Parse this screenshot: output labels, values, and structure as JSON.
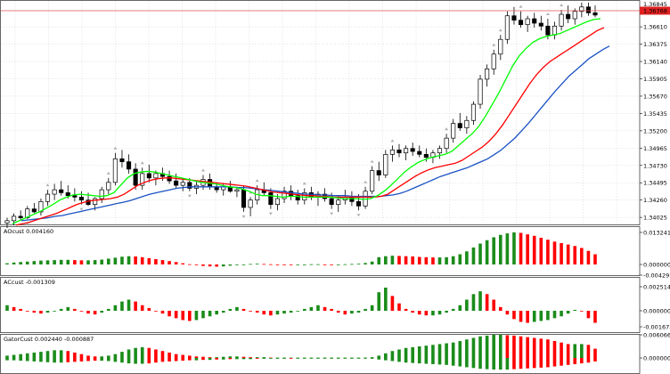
{
  "colors": {
    "background": "#ffffff",
    "grid": "#c8c8c8",
    "candle": "#000000",
    "alligator_fast": "#00ff00",
    "alligator_mid": "#ff0000",
    "alligator_slow": "#1a52c4",
    "histogram_up": "#1a8c1a",
    "histogram_down": "#ff0000",
    "price_line": "#e05050",
    "current_price_badge": "#e02020"
  },
  "main_panel": {
    "current_price": "1.36768",
    "top_price": "1.36845",
    "price_ticks": [
      "1.36610",
      "1.36375",
      "1.36140",
      "1.35905",
      "1.35670",
      "1.35435",
      "1.35200",
      "1.34965",
      "1.34730",
      "1.34495",
      "1.34260",
      "1.34025"
    ]
  },
  "panels": [
    {
      "title": "AOcust 0.004160",
      "ticks": [
        "0.013241",
        "0.000000",
        "-0.004297"
      ]
    },
    {
      "title": "ACcust -0.001309",
      "ticks": [
        "0.0025149",
        "0.000000",
        "-0.0016730"
      ]
    },
    {
      "title": "GatorCust 0.002440 -0.000887",
      "ticks": [
        "0.006066",
        "0.000000"
      ]
    }
  ],
  "chart_data": {
    "type": "candlestick",
    "ylim": [
      1.3393,
      1.3695
    ],
    "candles": [
      [
        1.3395,
        1.3402,
        1.3388,
        1.3398
      ],
      [
        1.3398,
        1.3408,
        1.3392,
        1.3404
      ],
      [
        1.3404,
        1.3412,
        1.3398,
        1.3402
      ],
      [
        1.3402,
        1.3418,
        1.34,
        1.3414
      ],
      [
        1.3414,
        1.3422,
        1.3408,
        1.341
      ],
      [
        1.341,
        1.3428,
        1.3405,
        1.3424
      ],
      [
        1.3424,
        1.344,
        1.3418,
        1.3434
      ],
      [
        1.3434,
        1.3448,
        1.3426,
        1.344
      ],
      [
        1.344,
        1.3452,
        1.3432,
        1.3436
      ],
      [
        1.3436,
        1.3446,
        1.3428,
        1.3432
      ],
      [
        1.3432,
        1.3442,
        1.3424,
        1.343
      ],
      [
        1.343,
        1.3438,
        1.342,
        1.3426
      ],
      [
        1.3426,
        1.3436,
        1.3418,
        1.342
      ],
      [
        1.342,
        1.343,
        1.3412,
        1.3428
      ],
      [
        1.3428,
        1.3444,
        1.3422,
        1.344
      ],
      [
        1.344,
        1.3456,
        1.3434,
        1.345
      ],
      [
        1.345,
        1.349,
        1.3446,
        1.3482
      ],
      [
        1.3482,
        1.3494,
        1.347,
        1.3478
      ],
      [
        1.3478,
        1.3488,
        1.3462,
        1.3468
      ],
      [
        1.3468,
        1.3476,
        1.344,
        1.3446
      ],
      [
        1.3446,
        1.347,
        1.344,
        1.3462
      ],
      [
        1.3462,
        1.3474,
        1.345,
        1.3456
      ],
      [
        1.3456,
        1.3466,
        1.3446,
        1.3462
      ],
      [
        1.3462,
        1.347,
        1.3452,
        1.3458
      ],
      [
        1.3458,
        1.3466,
        1.3448,
        1.3452
      ],
      [
        1.3452,
        1.3462,
        1.3442,
        1.3446
      ],
      [
        1.3446,
        1.3456,
        1.3438,
        1.345
      ],
      [
        1.345,
        1.3456,
        1.3438,
        1.3442
      ],
      [
        1.3442,
        1.3452,
        1.3434,
        1.3446
      ],
      [
        1.3446,
        1.346,
        1.344,
        1.3454
      ],
      [
        1.3454,
        1.3462,
        1.344,
        1.3444
      ],
      [
        1.3444,
        1.345,
        1.3436,
        1.344
      ],
      [
        1.344,
        1.3448,
        1.3432,
        1.3444
      ],
      [
        1.3444,
        1.3452,
        1.3436,
        1.3438
      ],
      [
        1.3438,
        1.3444,
        1.343,
        1.344
      ],
      [
        1.344,
        1.3446,
        1.341,
        1.3416
      ],
      [
        1.3416,
        1.343,
        1.3404,
        1.3426
      ],
      [
        1.3426,
        1.3446,
        1.342,
        1.344
      ],
      [
        1.344,
        1.345,
        1.3432,
        1.3436
      ],
      [
        1.3436,
        1.3442,
        1.3414,
        1.342
      ],
      [
        1.342,
        1.3434,
        1.3412,
        1.3428
      ],
      [
        1.3428,
        1.3444,
        1.3422,
        1.3438
      ],
      [
        1.3438,
        1.3446,
        1.3426,
        1.3432
      ],
      [
        1.3432,
        1.344,
        1.342,
        1.3426
      ],
      [
        1.3426,
        1.3442,
        1.342,
        1.3436
      ],
      [
        1.3436,
        1.3444,
        1.3426,
        1.343
      ],
      [
        1.343,
        1.3438,
        1.3418,
        1.3434
      ],
      [
        1.3434,
        1.3442,
        1.3424,
        1.3428
      ],
      [
        1.3428,
        1.3436,
        1.3414,
        1.342
      ],
      [
        1.342,
        1.3432,
        1.341,
        1.3426
      ],
      [
        1.3426,
        1.344,
        1.342,
        1.343
      ],
      [
        1.343,
        1.3438,
        1.3418,
        1.3424
      ],
      [
        1.3424,
        1.3434,
        1.3412,
        1.3418
      ],
      [
        1.3418,
        1.3444,
        1.3414,
        1.3438
      ],
      [
        1.3438,
        1.3472,
        1.3434,
        1.3466
      ],
      [
        1.3466,
        1.3478,
        1.3452,
        1.346
      ],
      [
        1.346,
        1.3494,
        1.3456,
        1.3488
      ],
      [
        1.3488,
        1.35,
        1.3478,
        1.3494
      ],
      [
        1.3494,
        1.3502,
        1.3484,
        1.349
      ],
      [
        1.349,
        1.35,
        1.348,
        1.3496
      ],
      [
        1.3496,
        1.3504,
        1.3486,
        1.3492
      ],
      [
        1.3492,
        1.35,
        1.3484,
        1.3488
      ],
      [
        1.3488,
        1.3496,
        1.3478,
        1.3484
      ],
      [
        1.3484,
        1.3494,
        1.3476,
        1.349
      ],
      [
        1.349,
        1.35,
        1.3482,
        1.3496
      ],
      [
        1.3496,
        1.3516,
        1.349,
        1.351
      ],
      [
        1.351,
        1.3536,
        1.3504,
        1.353
      ],
      [
        1.353,
        1.3544,
        1.352,
        1.3524
      ],
      [
        1.3524,
        1.354,
        1.3516,
        1.3534
      ],
      [
        1.3534,
        1.356,
        1.3528,
        1.3556
      ],
      [
        1.3556,
        1.3596,
        1.355,
        1.359
      ],
      [
        1.359,
        1.361,
        1.358,
        1.3604
      ],
      [
        1.3604,
        1.363,
        1.3596,
        1.3624
      ],
      [
        1.3624,
        1.365,
        1.3616,
        1.3644
      ],
      [
        1.3644,
        1.3682,
        1.3638,
        1.3676
      ],
      [
        1.3676,
        1.3688,
        1.3664,
        1.367
      ],
      [
        1.367,
        1.3682,
        1.366,
        1.3664
      ],
      [
        1.3664,
        1.3676,
        1.3654,
        1.3672
      ],
      [
        1.3672,
        1.368,
        1.366,
        1.3666
      ],
      [
        1.3666,
        1.3676,
        1.3656,
        1.3662
      ],
      [
        1.3662,
        1.3672,
        1.3644,
        1.365
      ],
      [
        1.365,
        1.3668,
        1.3644,
        1.3662
      ],
      [
        1.3662,
        1.3684,
        1.3656,
        1.3678
      ],
      [
        1.3678,
        1.369,
        1.3666,
        1.3672
      ],
      [
        1.3672,
        1.3686,
        1.3664,
        1.3682
      ],
      [
        1.3682,
        1.3694,
        1.3674,
        1.3688
      ],
      [
        1.3688,
        1.3694,
        1.3676,
        1.368
      ],
      [
        1.368,
        1.369,
        1.3674,
        1.3677
      ]
    ],
    "alligator": {
      "lips": [
        1.3394,
        1.3398,
        1.3402,
        1.3406,
        1.341,
        1.3415,
        1.342,
        1.3426,
        1.343,
        1.3433,
        1.3434,
        1.3433,
        1.3432,
        1.3431,
        1.3432,
        1.3436,
        1.3446,
        1.3456,
        1.3462,
        1.3464,
        1.3465,
        1.3464,
        1.3462,
        1.346,
        1.3458,
        1.3456,
        1.3454,
        1.3452,
        1.345,
        1.3449,
        1.3448,
        1.3446,
        1.3444,
        1.3443,
        1.3441,
        1.3438,
        1.3434,
        1.3432,
        1.3432,
        1.3431,
        1.343,
        1.3431,
        1.3431,
        1.343,
        1.343,
        1.343,
        1.343,
        1.343,
        1.3429,
        1.3428,
        1.3428,
        1.3428,
        1.3427,
        1.3428,
        1.3432,
        1.3438,
        1.3446,
        1.3455,
        1.3464,
        1.3471,
        1.3477,
        1.3481,
        1.3484,
        1.3486,
        1.3488,
        1.3492,
        1.35,
        1.3508,
        1.3516,
        1.3526,
        1.354,
        1.3556,
        1.3572,
        1.359,
        1.3608,
        1.3622,
        1.3632,
        1.364,
        1.3645,
        1.3648,
        1.365,
        1.3652,
        1.3656,
        1.366,
        1.3664,
        1.3668,
        1.3671,
        1.3672
      ],
      "teeth": [
        1.3392,
        1.3394,
        1.3396,
        1.3399,
        1.3402,
        1.3405,
        1.3408,
        1.3412,
        1.3416,
        1.342,
        1.3423,
        1.3425,
        1.3426,
        1.3427,
        1.3428,
        1.343,
        1.3434,
        1.344,
        1.3446,
        1.345,
        1.3453,
        1.3455,
        1.3456,
        1.3456,
        1.3455,
        1.3454,
        1.3453,
        1.3452,
        1.3451,
        1.345,
        1.3449,
        1.3448,
        1.3447,
        1.3446,
        1.3445,
        1.3443,
        1.3441,
        1.3439,
        1.3437,
        1.3436,
        1.3435,
        1.3434,
        1.3433,
        1.3432,
        1.3432,
        1.3431,
        1.3431,
        1.343,
        1.343,
        1.343,
        1.343,
        1.343,
        1.343,
        1.343,
        1.3431,
        1.3434,
        1.344,
        1.3446,
        1.3452,
        1.3458,
        1.3463,
        1.3467,
        1.347,
        1.3472,
        1.3474,
        1.3476,
        1.348,
        1.3486,
        1.3492,
        1.3498,
        1.3506,
        1.3516,
        1.3528,
        1.3542,
        1.3556,
        1.357,
        1.3584,
        1.3596,
        1.3606,
        1.3614,
        1.362,
        1.3626,
        1.3632,
        1.3638,
        1.3644,
        1.365,
        1.3656,
        1.366
      ],
      "jaw": [
        1.3398,
        1.3399,
        1.34,
        1.3401,
        1.3402,
        1.3404,
        1.3405,
        1.3407,
        1.3409,
        1.3411,
        1.3413,
        1.3415,
        1.3417,
        1.3419,
        1.3421,
        1.3423,
        1.3425,
        1.3428,
        1.3431,
        1.3434,
        1.3436,
        1.3438,
        1.344,
        1.3442,
        1.3443,
        1.3444,
        1.3444,
        1.3444,
        1.3444,
        1.3444,
        1.3444,
        1.3444,
        1.3443,
        1.3443,
        1.3442,
        1.3441,
        1.344,
        1.3439,
        1.3438,
        1.3437,
        1.3436,
        1.3435,
        1.3434,
        1.3434,
        1.3433,
        1.3433,
        1.3432,
        1.3432,
        1.3432,
        1.3431,
        1.3431,
        1.3431,
        1.3431,
        1.3431,
        1.3432,
        1.3433,
        1.3435,
        1.3438,
        1.3442,
        1.3446,
        1.345,
        1.3454,
        1.3458,
        1.3461,
        1.3464,
        1.3467,
        1.347,
        1.3474,
        1.3478,
        1.3482,
        1.3488,
        1.3494,
        1.3502,
        1.351,
        1.352,
        1.353,
        1.3541,
        1.3552,
        1.3563,
        1.3574,
        1.3584,
        1.3594,
        1.3602,
        1.361,
        1.3618,
        1.3624,
        1.363,
        1.3635
      ]
    },
    "ao": [
      0.0005,
      0.0008,
      0.001,
      0.0012,
      0.0014,
      0.0016,
      0.0017,
      0.0018,
      0.0019,
      0.0019,
      0.0018,
      0.0017,
      0.0017,
      0.0018,
      0.002,
      0.0024,
      0.0028,
      0.0032,
      0.0034,
      0.0033,
      0.003,
      0.0026,
      0.0022,
      0.0018,
      0.0014,
      0.001,
      0.0005,
      0.0001,
      -0.0003,
      -0.0006,
      -0.0008,
      -0.0009,
      -0.0008,
      -0.0005,
      -0.0002,
      0.0,
      0.0002,
      0.0003,
      0.0002,
      0.0001,
      0.0,
      -0.0001,
      -0.0002,
      -0.0001,
      0.0,
      0.0001,
      0.0001,
      0.0,
      -0.0001,
      0.0,
      0.0001,
      0.0002,
      0.0003,
      0.0006,
      0.0012,
      0.003,
      0.0034,
      0.0036,
      0.0035,
      0.0034,
      0.0033,
      0.0031,
      0.003,
      0.0029,
      0.0029,
      0.003,
      0.0034,
      0.0042,
      0.0054,
      0.007,
      0.0086,
      0.01,
      0.0112,
      0.0122,
      0.0128,
      0.0132,
      0.013,
      0.0124,
      0.0118,
      0.011,
      0.0102,
      0.0094,
      0.0088,
      0.0082,
      0.0076,
      0.0068,
      0.0056,
      0.0042
    ],
    "ac": [
      0.0006,
      0.0004,
      0.0002,
      0.0,
      -0.0002,
      -0.0003,
      -0.0002,
      0.0,
      0.0002,
      0.0004,
      0.0002,
      0.0,
      -0.0003,
      -0.0004,
      -0.0002,
      0.0002,
      0.0006,
      0.001,
      0.0012,
      0.001,
      0.0006,
      0.0003,
      0.0,
      -0.0003,
      -0.0006,
      -0.0008,
      -0.001,
      -0.0011,
      -0.001,
      -0.0008,
      -0.0006,
      -0.0004,
      -0.0002,
      0.0002,
      0.0004,
      0.0002,
      0.0,
      -0.0002,
      -0.0004,
      -0.0005,
      -0.0004,
      -0.0003,
      -0.0002,
      0.0,
      0.0002,
      0.0004,
      0.0006,
      0.0004,
      0.0002,
      -0.0002,
      -0.0004,
      -0.0003,
      -0.0002,
      0.0002,
      0.0006,
      0.002,
      0.0025,
      0.0016,
      0.0008,
      0.0002,
      -0.0002,
      -0.0004,
      -0.0005,
      -0.0005,
      -0.0004,
      -0.0002,
      0.0002,
      0.0006,
      0.0012,
      0.0018,
      0.0021,
      0.0018,
      0.0012,
      0.0004,
      -0.0004,
      -0.0009,
      -0.0012,
      -0.0013,
      -0.0012,
      -0.0011,
      -0.001,
      -0.0008,
      -0.0006,
      -0.0003,
      0.0001,
      0.0,
      -0.0008,
      -0.0013
    ],
    "gator_upper": [
      0.0006,
      0.0008,
      0.001,
      0.0012,
      0.0014,
      0.0016,
      0.0018,
      0.002,
      0.002,
      0.0018,
      0.0014,
      0.001,
      0.0006,
      0.0004,
      0.0004,
      0.0006,
      0.001,
      0.0016,
      0.0022,
      0.0026,
      0.0028,
      0.0026,
      0.0022,
      0.0018,
      0.0014,
      0.001,
      0.0008,
      0.0006,
      0.0004,
      0.0003,
      0.0002,
      0.0002,
      0.0003,
      0.0004,
      0.0004,
      0.0003,
      0.0002,
      0.0002,
      0.0002,
      0.0001,
      0.0001,
      0.0001,
      0.0001,
      0.0001,
      0.0001,
      0.0001,
      0.0001,
      0.0001,
      0.0001,
      0.0001,
      0.0001,
      0.0001,
      0.0001,
      0.0001,
      0.0002,
      0.0006,
      0.0012,
      0.0018,
      0.0022,
      0.0026,
      0.0028,
      0.003,
      0.0032,
      0.0034,
      0.0036,
      0.0038,
      0.004,
      0.0044,
      0.0048,
      0.0052,
      0.0056,
      0.0058,
      0.006,
      0.006,
      0.0059,
      0.0058,
      0.0056,
      0.0054,
      0.0052,
      0.005,
      0.0048,
      0.0044,
      0.004,
      0.0036,
      0.0036,
      0.0036,
      0.0034,
      0.0024
    ],
    "gator_lower": [
      -0.0006,
      -0.0006,
      -0.0007,
      -0.0008,
      -0.0009,
      -0.001,
      -0.0011,
      -0.0012,
      -0.0012,
      -0.0011,
      -0.001,
      -0.0009,
      -0.0008,
      -0.0007,
      -0.0007,
      -0.0008,
      -0.001,
      -0.0012,
      -0.0014,
      -0.0015,
      -0.0015,
      -0.0014,
      -0.0012,
      -0.001,
      -0.0009,
      -0.0008,
      -0.0007,
      -0.0006,
      -0.0006,
      -0.0005,
      -0.0005,
      -0.0004,
      -0.0004,
      -0.0003,
      -0.0003,
      -0.0003,
      -0.0003,
      -0.0002,
      -0.0002,
      -0.0002,
      -0.0002,
      -0.0002,
      -0.0001,
      -0.0001,
      -0.0001,
      -0.0001,
      -0.0001,
      -0.0001,
      -0.0001,
      -0.0001,
      -0.0001,
      -0.0001,
      -0.0001,
      -0.0001,
      -0.0002,
      -0.0004,
      -0.0006,
      -0.0008,
      -0.001,
      -0.0012,
      -0.0013,
      -0.0014,
      -0.0015,
      -0.0016,
      -0.0017,
      -0.0018,
      -0.002,
      -0.0022,
      -0.0024,
      -0.0026,
      -0.0028,
      -0.0029,
      -0.003,
      -0.003,
      -0.003,
      -0.0029,
      -0.0028,
      -0.0027,
      -0.0026,
      -0.0025,
      -0.0024,
      -0.0022,
      -0.002,
      -0.0018,
      -0.0016,
      -0.0014,
      -0.0012,
      -0.0009
    ]
  }
}
